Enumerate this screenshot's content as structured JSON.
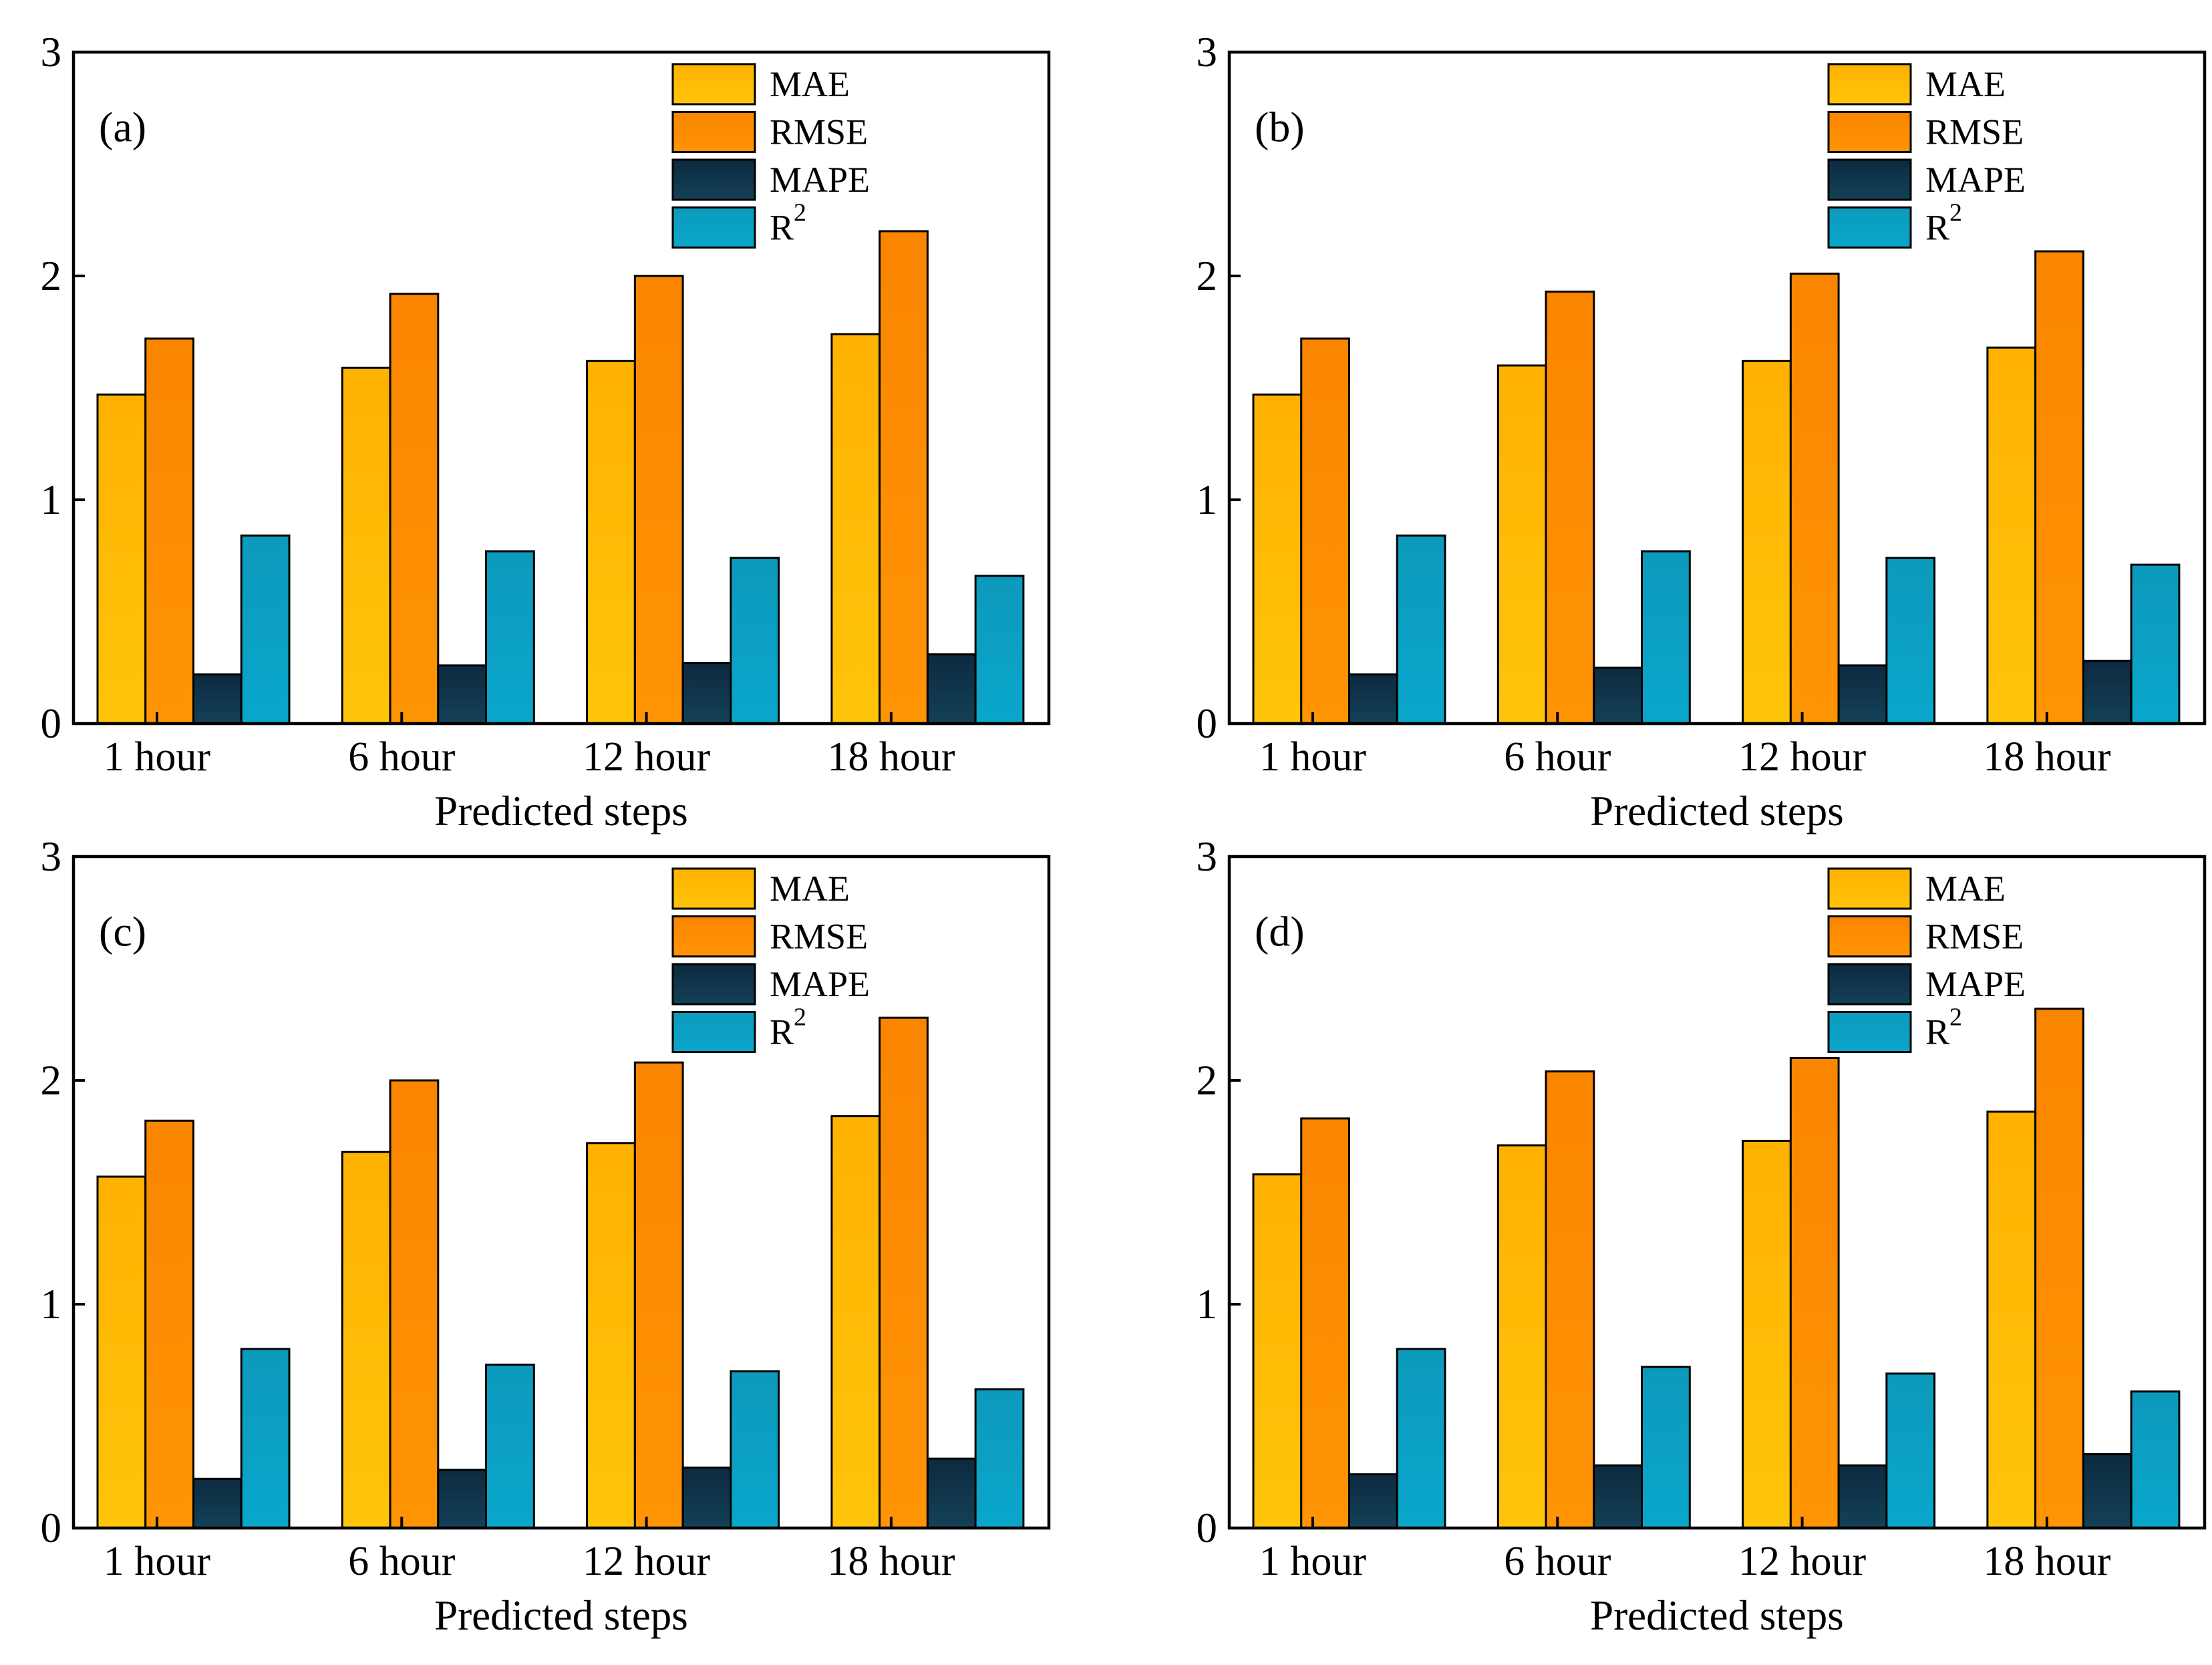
{
  "figure": {
    "background": "#ffffff",
    "x_axis_label": "Predicted steps",
    "categories": [
      "1 hour",
      "6 hour",
      "12 hour",
      "18 hour"
    ],
    "y_tick_labels": [
      "0",
      "1",
      "2",
      "3"
    ],
    "ylim": [
      0,
      3
    ],
    "panel_tags": [
      "(a)",
      "(b)",
      "(c)",
      "(d)"
    ],
    "legend": {
      "position": "top-right",
      "entries": [
        {
          "label": "MAE",
          "color": "#ffb703",
          "color_top": "#ffb200",
          "color_bottom": "#ffc40a"
        },
        {
          "label": "RMSE",
          "color": "#fb8500",
          "color_top": "#fa8500",
          "color_bottom": "#ff9404"
        },
        {
          "label": "MAPE",
          "color": "#0f3147",
          "color_top": "#0d2a3f",
          "color_bottom": "#134158"
        },
        {
          "label": "R²",
          "color": "#0f9fc0",
          "color_top": "#0c9abc",
          "color_bottom": "#0aa6cb"
        }
      ]
    }
  },
  "chart_data": [
    {
      "type": "bar",
      "panel_tag": "(a)",
      "title": "",
      "xlabel": "Predicted steps",
      "ylabel": "",
      "ylim": [
        0,
        3
      ],
      "yticks": [
        0,
        1,
        2,
        3
      ],
      "grid": false,
      "legend_position": "top-right",
      "categories": [
        "1 hour",
        "6 hour",
        "12 hour",
        "18 hour"
      ],
      "series": [
        {
          "name": "MAE",
          "values": [
            1.47,
            1.59,
            1.62,
            1.74
          ]
        },
        {
          "name": "RMSE",
          "values": [
            1.72,
            1.92,
            2.0,
            2.2
          ]
        },
        {
          "name": "MAPE",
          "values": [
            0.22,
            0.26,
            0.27,
            0.31
          ]
        },
        {
          "name": "R²",
          "values": [
            0.84,
            0.77,
            0.74,
            0.66
          ]
        }
      ]
    },
    {
      "type": "bar",
      "panel_tag": "(b)",
      "title": "",
      "xlabel": "Predicted steps",
      "ylabel": "",
      "ylim": [
        0,
        3
      ],
      "yticks": [
        0,
        1,
        2,
        3
      ],
      "grid": false,
      "legend_position": "top-right",
      "categories": [
        "1 hour",
        "6 hour",
        "12 hour",
        "18 hour"
      ],
      "series": [
        {
          "name": "MAE",
          "values": [
            1.47,
            1.6,
            1.62,
            1.68
          ]
        },
        {
          "name": "RMSE",
          "values": [
            1.72,
            1.93,
            2.01,
            2.11
          ]
        },
        {
          "name": "MAPE",
          "values": [
            0.22,
            0.25,
            0.26,
            0.28
          ]
        },
        {
          "name": "R²",
          "values": [
            0.84,
            0.77,
            0.74,
            0.71
          ]
        }
      ]
    },
    {
      "type": "bar",
      "panel_tag": "(c)",
      "title": "",
      "xlabel": "Predicted steps",
      "ylabel": "",
      "ylim": [
        0,
        3
      ],
      "yticks": [
        0,
        1,
        2,
        3
      ],
      "grid": false,
      "legend_position": "top-right",
      "categories": [
        "1 hour",
        "6 hour",
        "12 hour",
        "18 hour"
      ],
      "series": [
        {
          "name": "MAE",
          "values": [
            1.57,
            1.68,
            1.72,
            1.84
          ]
        },
        {
          "name": "RMSE",
          "values": [
            1.82,
            2.0,
            2.08,
            2.28
          ]
        },
        {
          "name": "MAPE",
          "values": [
            0.22,
            0.26,
            0.27,
            0.31
          ]
        },
        {
          "name": "R²",
          "values": [
            0.8,
            0.73,
            0.7,
            0.62
          ]
        }
      ]
    },
    {
      "type": "bar",
      "panel_tag": "(d)",
      "title": "",
      "xlabel": "Predicted steps",
      "ylabel": "",
      "ylim": [
        0,
        3
      ],
      "yticks": [
        0,
        1,
        2,
        3
      ],
      "grid": false,
      "legend_position": "top-right",
      "categories": [
        "1 hour",
        "6 hour",
        "12 hour",
        "18 hour"
      ],
      "series": [
        {
          "name": "MAE",
          "values": [
            1.58,
            1.71,
            1.73,
            1.86
          ]
        },
        {
          "name": "RMSE",
          "values": [
            1.83,
            2.04,
            2.1,
            2.32
          ]
        },
        {
          "name": "MAPE",
          "values": [
            0.24,
            0.28,
            0.28,
            0.33
          ]
        },
        {
          "name": "R²",
          "values": [
            0.8,
            0.72,
            0.69,
            0.61
          ]
        }
      ]
    }
  ]
}
